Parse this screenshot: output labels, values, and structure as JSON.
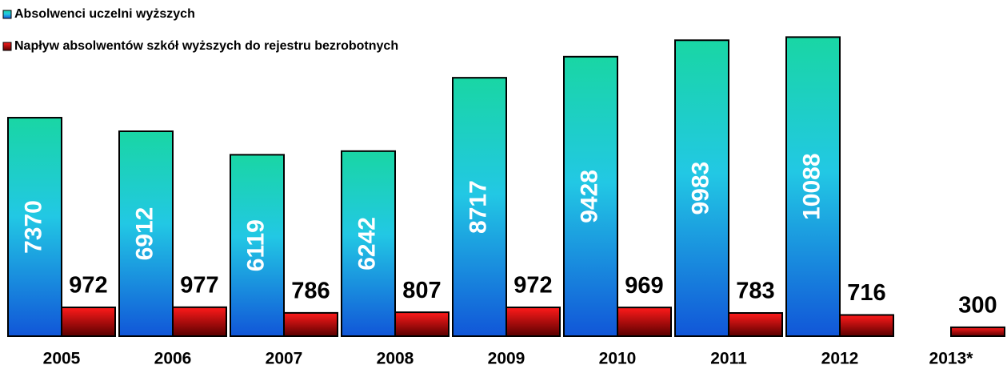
{
  "chart_data": {
    "type": "bar",
    "categories": [
      "2005",
      "2006",
      "2007",
      "2008",
      "2009",
      "2010",
      "2011",
      "2012",
      "2013*"
    ],
    "series": [
      {
        "name": "Absolwenci uczelni wyższych",
        "color": "#1aa0e0",
        "values": [
          7370,
          6912,
          6119,
          6242,
          8717,
          9428,
          9983,
          10088,
          null
        ]
      },
      {
        "name": "Napływ absolwentów szkół wyższych do rejestru bezrobotnych",
        "color": "#cc0000",
        "values": [
          972,
          977,
          786,
          807,
          972,
          969,
          783,
          716,
          300
        ]
      }
    ],
    "ylim": [
      0,
      10800
    ]
  }
}
